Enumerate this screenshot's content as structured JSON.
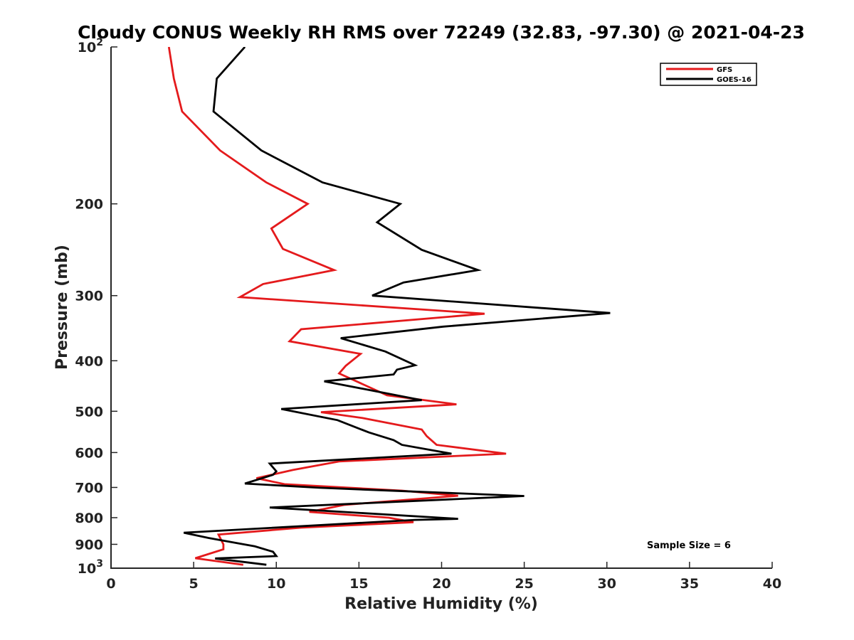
{
  "chart_data": {
    "type": "line",
    "title": "Cloudy CONUS Weekly RH RMS over 72249 (32.83, -97.30) @ 2021-04-23",
    "xlabel": "Relative Humidity (%)",
    "ylabel": "Pressure (mb)",
    "xlim": [
      0,
      40
    ],
    "ylim": [
      100,
      1000
    ],
    "y_scale": "log",
    "y_reversed": true,
    "grid": false,
    "legend_position": "top-right",
    "annotation": "Sample Size = 6",
    "x_ticks": [
      {
        "value": 0,
        "label": "0"
      },
      {
        "value": 5,
        "label": "5"
      },
      {
        "value": 10,
        "label": "10"
      },
      {
        "value": 15,
        "label": "15"
      },
      {
        "value": 20,
        "label": "20"
      },
      {
        "value": 25,
        "label": "25"
      },
      {
        "value": 30,
        "label": "30"
      },
      {
        "value": 35,
        "label": "35"
      },
      {
        "value": 40,
        "label": "40"
      }
    ],
    "y_ticks": [
      {
        "value": 100,
        "label": "",
        "base": "10",
        "exp": "2"
      },
      {
        "value": 200,
        "label": "200"
      },
      {
        "value": 300,
        "label": "300"
      },
      {
        "value": 400,
        "label": "400"
      },
      {
        "value": 500,
        "label": "500"
      },
      {
        "value": 600,
        "label": "600"
      },
      {
        "value": 700,
        "label": "700"
      },
      {
        "value": 800,
        "label": "800"
      },
      {
        "value": 900,
        "label": "900"
      },
      {
        "value": 1000,
        "label": "",
        "base": "10",
        "exp": "3"
      }
    ],
    "series": [
      {
        "name": "GFS",
        "color": "#e41a1c",
        "points": [
          [
            3.5,
            100
          ],
          [
            3.8,
            115
          ],
          [
            4.3,
            133
          ],
          [
            6.6,
            158
          ],
          [
            9.4,
            182
          ],
          [
            11.9,
            200
          ],
          [
            9.7,
            223
          ],
          [
            10.4,
            244
          ],
          [
            13.5,
            268
          ],
          [
            9.2,
            285
          ],
          [
            7.8,
            302
          ],
          [
            22.6,
            325
          ],
          [
            11.5,
            348
          ],
          [
            10.8,
            367
          ],
          [
            15.1,
            388
          ],
          [
            14.2,
            409
          ],
          [
            13.8,
            423
          ],
          [
            16.7,
            466
          ],
          [
            20.9,
            485
          ],
          [
            12.7,
            502
          ],
          [
            15.2,
            515
          ],
          [
            18.8,
            542
          ],
          [
            19.1,
            558
          ],
          [
            19.7,
            580
          ],
          [
            23.9,
            603
          ],
          [
            13.8,
            624
          ],
          [
            11.0,
            648
          ],
          [
            8.8,
            672
          ],
          [
            10.5,
            690
          ],
          [
            17.6,
            710
          ],
          [
            21.0,
            726
          ],
          [
            14.1,
            756
          ],
          [
            12.0,
            780
          ],
          [
            16.8,
            800
          ],
          [
            18.3,
            816
          ],
          [
            11.5,
            836
          ],
          [
            6.5,
            862
          ],
          [
            6.8,
            900
          ],
          [
            6.8,
            920
          ],
          [
            5.1,
            957
          ],
          [
            8.0,
            985
          ]
        ]
      },
      {
        "name": "GOES-16",
        "color": "#000000",
        "points": [
          [
            8.1,
            100
          ],
          [
            6.4,
            115
          ],
          [
            6.2,
            133
          ],
          [
            9.1,
            158
          ],
          [
            12.8,
            182
          ],
          [
            17.5,
            200
          ],
          [
            16.1,
            217
          ],
          [
            18.8,
            245
          ],
          [
            22.2,
            268
          ],
          [
            17.7,
            283
          ],
          [
            15.8,
            300
          ],
          [
            30.2,
            324
          ],
          [
            20.1,
            344
          ],
          [
            13.9,
            362
          ],
          [
            16.6,
            384
          ],
          [
            18.4,
            408
          ],
          [
            17.3,
            416
          ],
          [
            17.1,
            425
          ],
          [
            12.9,
            438
          ],
          [
            18.8,
            476
          ],
          [
            10.3,
            495
          ],
          [
            13.7,
            520
          ],
          [
            15.6,
            549
          ],
          [
            17.1,
            568
          ],
          [
            17.6,
            580
          ],
          [
            20.6,
            603
          ],
          [
            9.6,
            630
          ],
          [
            10.0,
            652
          ],
          [
            9.8,
            662
          ],
          [
            8.1,
            688
          ],
          [
            12.6,
            701
          ],
          [
            25.0,
            727
          ],
          [
            9.6,
            765
          ],
          [
            21.0,
            804
          ],
          [
            18.4,
            808
          ],
          [
            4.4,
            855
          ],
          [
            5.9,
            875
          ],
          [
            8.7,
            908
          ],
          [
            9.8,
            930
          ],
          [
            10.0,
            948
          ],
          [
            6.3,
            958
          ],
          [
            9.4,
            985
          ]
        ]
      }
    ]
  }
}
